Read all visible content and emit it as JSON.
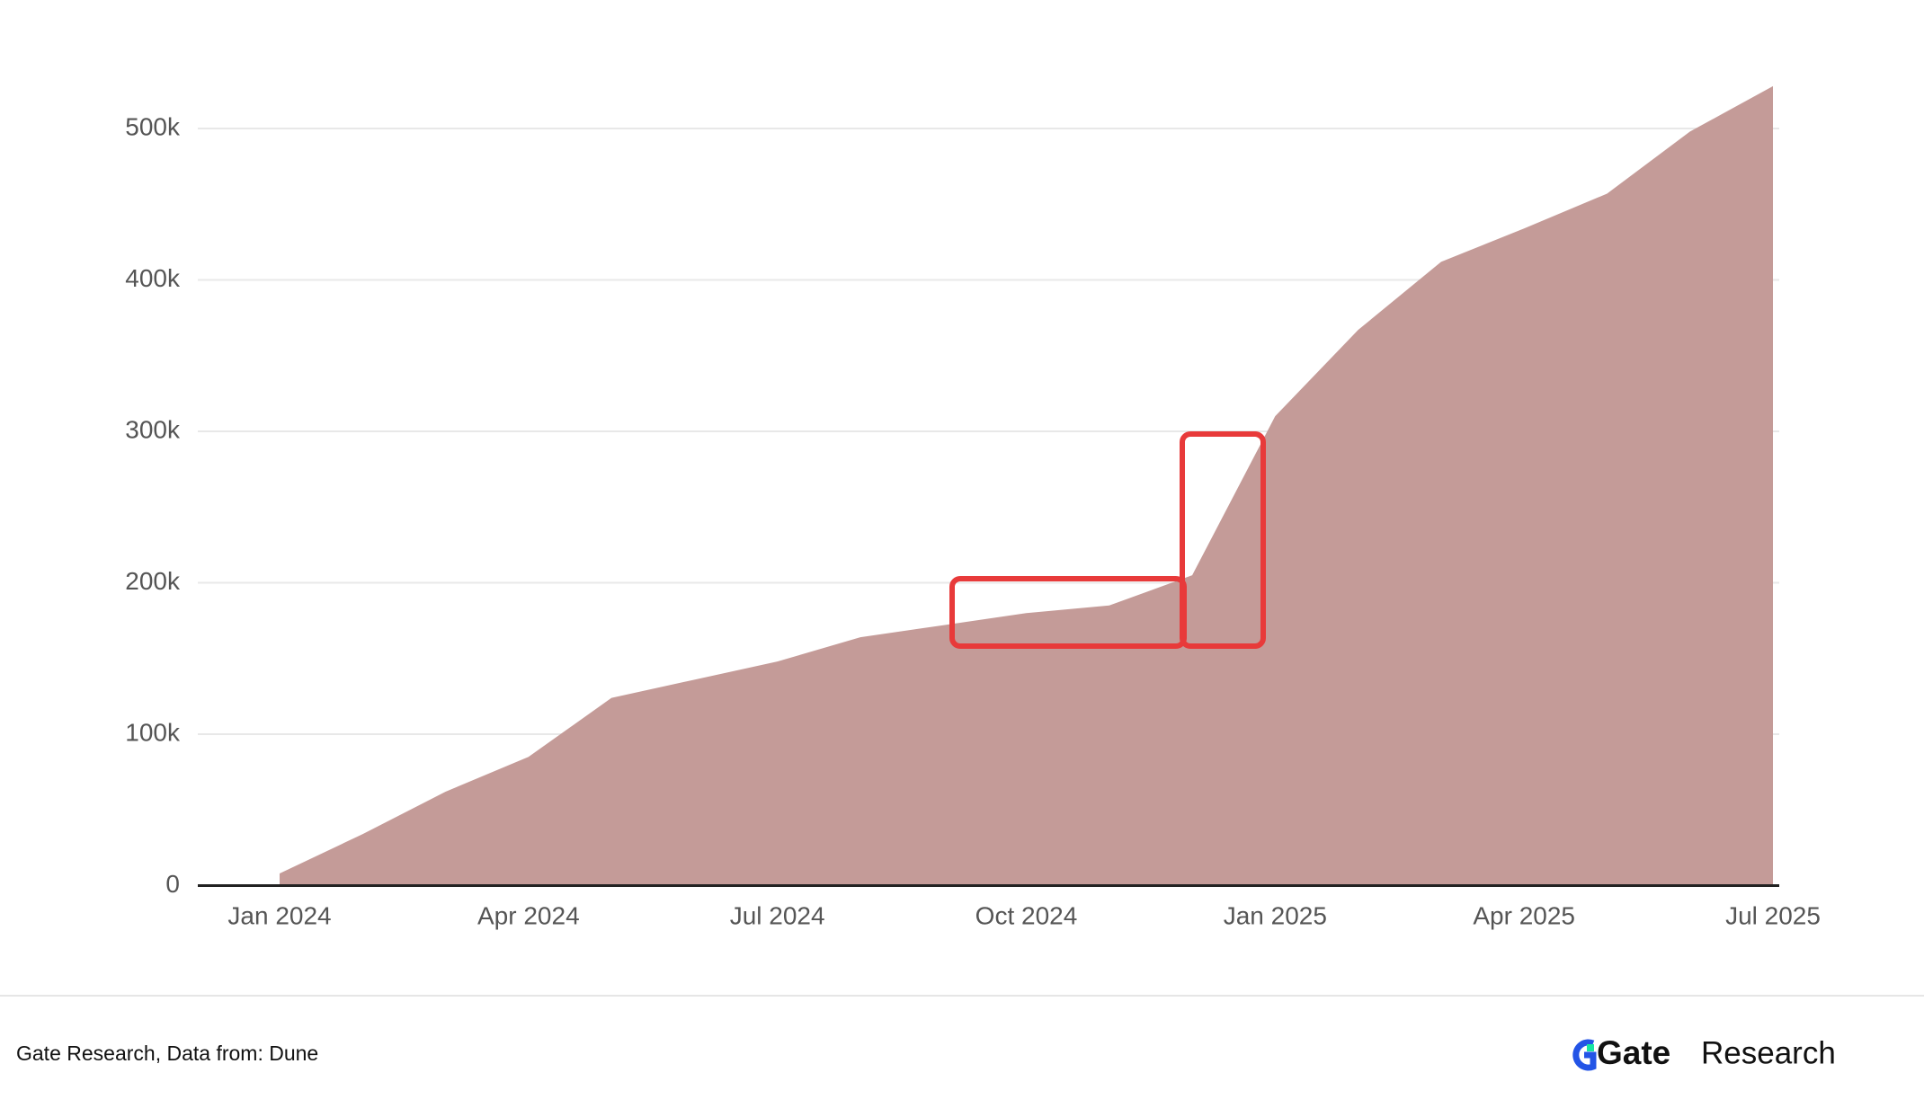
{
  "chart_data": {
    "type": "area",
    "x": [
      "2024-01",
      "2024-02",
      "2024-03",
      "2024-04",
      "2024-05",
      "2024-06",
      "2024-07",
      "2024-08",
      "2024-09",
      "2024-10",
      "2024-11",
      "2024-12",
      "2025-01",
      "2025-02",
      "2025-03",
      "2025-04",
      "2025-05",
      "2025-06",
      "2025-07"
    ],
    "values": [
      8000,
      34000,
      62000,
      85000,
      124000,
      136000,
      148000,
      164000,
      172000,
      180000,
      185000,
      205000,
      310000,
      367000,
      412000,
      434000,
      457000,
      498000,
      528000
    ],
    "color": "#c49b98",
    "ylim": [
      0,
      530000
    ],
    "yticks": [
      0,
      {
        "value": 100000,
        "label": "100k"
      },
      {
        "value": 200000,
        "label": "200k"
      },
      {
        "value": 300000,
        "label": "300k"
      },
      {
        "value": 400000,
        "label": "400k"
      },
      {
        "value": 500000,
        "label": "500k"
      }
    ],
    "xticks": [
      {
        "value": "2024-01",
        "label": "Jan 2024"
      },
      {
        "value": "2024-04",
        "label": "Apr 2024"
      },
      {
        "value": "2024-07",
        "label": "Jul 2024"
      },
      {
        "value": "2024-10",
        "label": "Oct 2024"
      },
      {
        "value": "2025-01",
        "label": "Jan 2025"
      },
      {
        "value": "2025-04",
        "label": "Apr 2025"
      },
      {
        "value": "2025-07",
        "label": "Jul 2025"
      }
    ],
    "grid": true
  },
  "footer": {
    "source": "Gate Research, Data from: Dune",
    "brand": "Gate",
    "brand_suffix": "Research"
  }
}
